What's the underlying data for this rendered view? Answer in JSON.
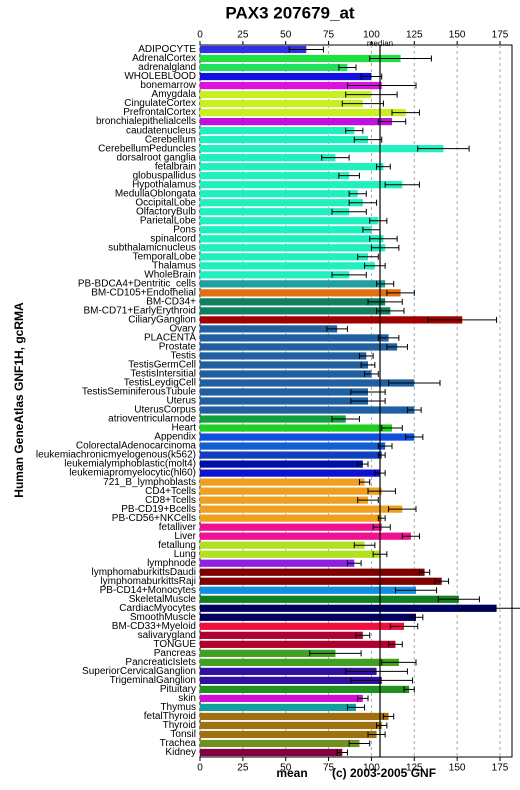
{
  "chart_data": {
    "type": "bar",
    "orientation": "horizontal",
    "title": "PAX3 207679_at",
    "y_label": "Human GeneAtlas GNF1H, gcRMA",
    "x_label": "mean",
    "credit": "(c) 2003-2005 GNF",
    "median_label": "median",
    "median": 105,
    "xlim": [
      0,
      182
    ],
    "xticks": [
      0,
      25,
      50,
      75,
      100,
      125,
      150,
      175
    ],
    "grid": true,
    "categories": [
      "ADIPOCYTE",
      "AdrenalCortex",
      "adrenalgland",
      "WHOLEBLOOD",
      "bonemarrow",
      "Amygdala",
      "CingulateCortex",
      "PrefrontalCortex",
      "bronchialepithelialcells",
      "caudatenucleus",
      "Cerebellum",
      "CerebellumPeduncles",
      "dorsalroot ganglia",
      "fetalbrain",
      "globuspallidus",
      "Hypothalamus",
      "MedullaOblongata",
      "OccipitalLobe",
      "OlfactoryBulb",
      "ParietalLobe",
      "Pons",
      "spinalcord",
      "subthalamicnucleus",
      "TemporalLobe",
      "Thalamus",
      "WholeBrain",
      "PB-BDCA4+Dentritic_cells",
      "BM-CD105+Endothelial",
      "BM-CD34+",
      "BM-CD71+EarlyErythroid",
      "CiliaryGanglion",
      "Ovary",
      "PLACENTA",
      "Prostate",
      "Testis",
      "TestisGermCell",
      "TestisIntersitial",
      "TestisLeydigCell",
      "TestisSeminiferousTubule",
      "Uterus",
      "UterusCorpus",
      "atrioventricularnode",
      "Heart",
      "Appendix",
      "ColorectalAdenocarcinoma",
      "leukemiachronicmyelogenous(k562)",
      "leukemialymphoblastic(molt4)",
      "leukemiapromyelocytic(hl60)",
      "721_B_lymphoblasts",
      "CD4+Tcells",
      "CD8+Tcells",
      "PB-CD19+Bcells",
      "PB-CD56+NKCells",
      "fetalliver",
      "Liver",
      "fetallung",
      "Lung",
      "lymphnode",
      "lymphomaburkittsDaudi",
      "lymphomaburkittsRaji",
      "PB-CD14+Monocytes",
      "SkeletalMuscle",
      "CardiacMyocytes",
      "SmoothMuscle",
      "BM-CD33+Myeloid",
      "salivarygland",
      "TONGUE",
      "Pancreas",
      "PancreaticIslets",
      "SuperiorCervicalGanglion",
      "TrigeminalGanglion",
      "Pituitary",
      "skin",
      "Thymus",
      "fetalThyroid",
      "Thyroid",
      "Tonsil",
      "Trachea",
      "Kidney"
    ],
    "values": [
      62,
      117,
      86,
      100,
      106,
      100,
      95,
      120,
      112,
      90,
      98,
      142,
      79,
      107,
      87,
      118,
      92,
      95,
      87,
      104,
      100,
      107,
      108,
      98,
      102,
      87,
      108,
      117,
      108,
      111,
      153,
      80,
      110,
      115,
      97,
      98,
      100,
      125,
      98,
      98,
      125,
      85,
      112,
      125,
      108,
      106,
      95,
      105,
      96,
      106,
      98,
      118,
      106,
      106,
      123,
      96,
      105,
      90,
      131,
      141,
      126,
      151,
      173,
      126,
      119,
      95,
      114,
      79,
      116,
      103,
      106,
      122,
      95,
      91,
      110,
      106,
      103,
      93,
      83
    ],
    "errors": [
      10,
      18,
      5,
      6,
      20,
      15,
      12,
      8,
      8,
      5,
      8,
      15,
      8,
      4,
      6,
      10,
      5,
      8,
      10,
      5,
      5,
      8,
      8,
      6,
      6,
      10,
      5,
      8,
      10,
      8,
      20,
      6,
      6,
      6,
      4,
      4,
      4,
      15,
      10,
      10,
      4,
      8,
      6,
      5,
      4,
      2,
      3,
      3,
      3,
      8,
      6,
      8,
      2,
      5,
      5,
      6,
      4,
      4,
      3,
      4,
      12,
      12,
      20,
      4,
      8,
      4,
      4,
      15,
      10,
      18,
      18,
      3,
      3,
      5,
      3,
      3,
      5,
      6,
      3
    ],
    "colors": [
      "#3030e8",
      "#20e040",
      "#20e060",
      "#1010e0",
      "#e010e0",
      "#c8f020",
      "#c8f020",
      "#c8f020",
      "#c010e0",
      "#20f0c0",
      "#20f0c0",
      "#20f0c0",
      "#20f0c0",
      "#20f0c0",
      "#20f0c0",
      "#20f0c0",
      "#20f0c0",
      "#20f0c0",
      "#20f0c0",
      "#20f0c0",
      "#20f0c0",
      "#20f0c0",
      "#20f0c0",
      "#20f0c0",
      "#20f0c0",
      "#20f0c0",
      "#20a0a0",
      "#e07010",
      "#108060",
      "#108060",
      "#a00000",
      "#2060a0",
      "#2060a0",
      "#2060a0",
      "#2060a0",
      "#2060a0",
      "#2060a0",
      "#2060a0",
      "#2060a0",
      "#2060a0",
      "#2060a0",
      "#10a040",
      "#20d020",
      "#1050e0",
      "#1060d0",
      "#1040c0",
      "#0010a0",
      "#1010d0",
      "#f0a020",
      "#f0a020",
      "#f0a020",
      "#f0a020",
      "#f0a020",
      "#f01090",
      "#f01090",
      "#b0e020",
      "#b0e020",
      "#9020e0",
      "#800000",
      "#800000",
      "#1090e0",
      "#108020",
      "#000060",
      "#000060",
      "#f01040",
      "#b00030",
      "#b00030",
      "#40a020",
      "#40a020",
      "#3010a0",
      "#3010a0",
      "#209020",
      "#d010d0",
      "#10a0a0",
      "#a07010",
      "#a07010",
      "#a07010",
      "#709020",
      "#800040"
    ]
  }
}
